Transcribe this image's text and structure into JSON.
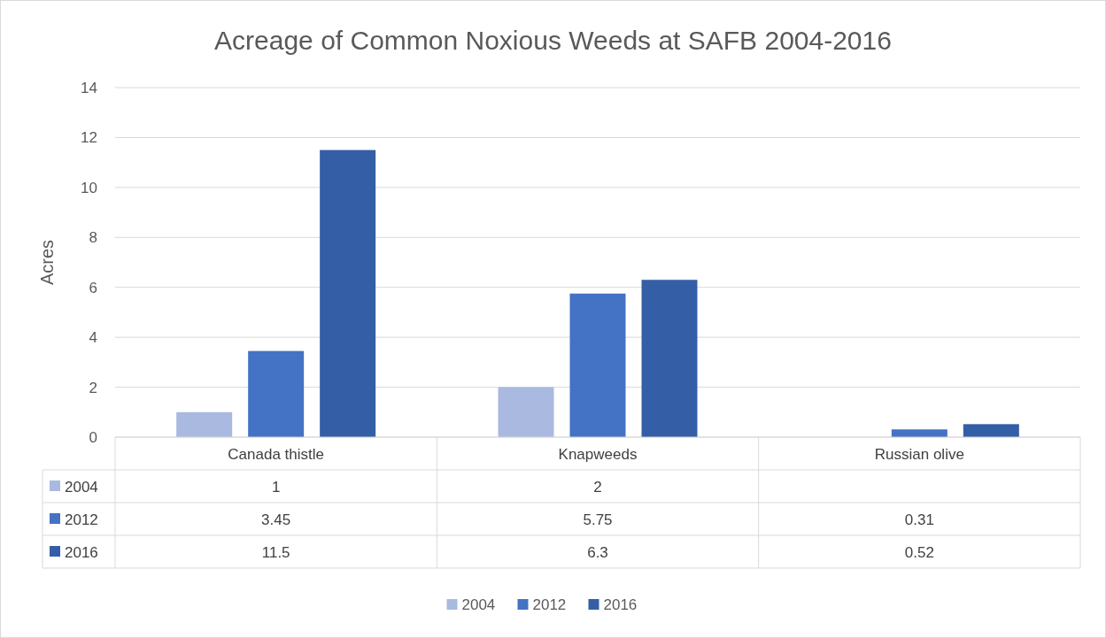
{
  "chart_data": {
    "type": "bar",
    "title": "Acreage of Common Noxious Weeds at SAFB 2004-2016",
    "ylabel": "Acres",
    "categories": [
      "Canada thistle",
      "Knapweeds",
      "Russian olive"
    ],
    "series": [
      {
        "name": "2004",
        "color": "#a9b9df",
        "values": [
          1,
          2,
          null
        ]
      },
      {
        "name": "2012",
        "color": "#4472c4",
        "values": [
          3.45,
          5.75,
          0.31
        ]
      },
      {
        "name": "2016",
        "color": "#345fa6",
        "values": [
          11.5,
          6.3,
          0.52
        ]
      }
    ],
    "ylim": [
      0,
      14
    ],
    "yticks": [
      0,
      2,
      4,
      6,
      8,
      10,
      12,
      14
    ],
    "grid": "y",
    "legend": "bottom",
    "data_labels": true
  }
}
